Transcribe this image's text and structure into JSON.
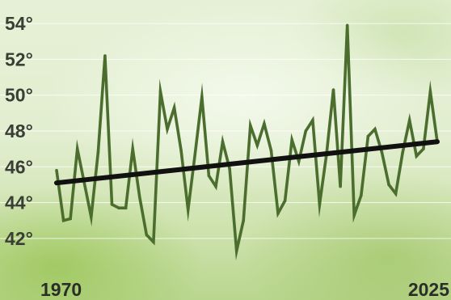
{
  "chart_data": {
    "type": "line",
    "title": "",
    "xlabel": "",
    "ylabel": "",
    "ylim": [
      41,
      54.5
    ],
    "y_ticks": [
      42,
      44,
      46,
      48,
      50,
      52,
      54
    ],
    "y_tick_labels": [
      "42°",
      "44°",
      "46°",
      "48°",
      "50°",
      "52°",
      "54°"
    ],
    "x_tick_labels": [
      "1970",
      "2025"
    ],
    "grid": true,
    "colors": {
      "series": "#4b6e2f",
      "trend": "#111111",
      "grid": "#ffffff"
    },
    "series": [
      {
        "values": [
          45.8,
          43.0,
          43.1,
          47.0,
          45.1,
          43.2,
          46.8,
          52.2,
          43.9,
          43.7,
          43.7,
          47.0,
          44.3,
          42.2,
          41.8,
          50.2,
          48.1,
          49.3,
          46.9,
          43.6,
          46.7,
          49.9,
          45.5,
          44.9,
          47.4,
          45.9,
          41.3,
          43.0,
          48.3,
          47.2,
          48.4,
          46.9,
          43.4,
          44.1,
          47.5,
          46.3,
          48.0,
          48.6,
          43.9,
          46.7,
          50.3,
          44.9,
          53.9,
          43.3,
          44.4,
          47.7,
          48.1,
          46.8,
          45.0,
          44.5,
          46.8,
          48.6,
          46.6,
          47.0,
          50.2,
          47.4
        ]
      }
    ],
    "trend": {
      "start": 45.1,
      "end": 47.4
    }
  }
}
